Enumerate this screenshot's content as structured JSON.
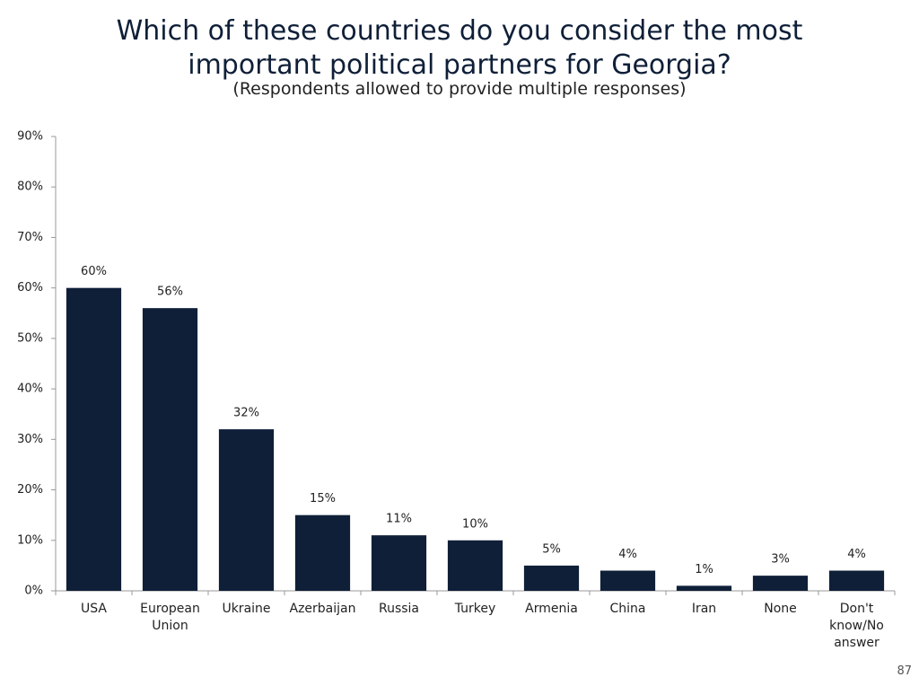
{
  "chart_data": {
    "type": "bar",
    "title": "Which of these countries do you consider the most important political partners for Georgia?",
    "subtitle": "(Respondents allowed to provide multiple responses)",
    "categories": [
      "USA",
      "European Union",
      "Ukraine",
      "Azerbaijan",
      "Russia",
      "Turkey",
      "Armenia",
      "China",
      "Iran",
      "None",
      "Don't know/No answer"
    ],
    "values": [
      60,
      56,
      32,
      15,
      11,
      10,
      5,
      4,
      1,
      3,
      4
    ],
    "value_labels": [
      "60%",
      "56%",
      "32%",
      "15%",
      "11%",
      "10%",
      "5%",
      "4%",
      "1%",
      "3%",
      "4%"
    ],
    "color": "#0f1f38",
    "ylim": [
      0,
      90
    ],
    "yticks": [
      {
        "value": 0,
        "label": "0%"
      },
      {
        "value": 10,
        "label": "10%"
      },
      {
        "value": 20,
        "label": "20%"
      },
      {
        "value": 30,
        "label": "30%"
      },
      {
        "value": 40,
        "label": "40%"
      },
      {
        "value": 50,
        "label": "50%"
      },
      {
        "value": 60,
        "label": "60%"
      },
      {
        "value": 70,
        "label": "70%"
      },
      {
        "value": 80,
        "label": "80%"
      },
      {
        "value": 90,
        "label": "90%"
      }
    ],
    "grid": false
  },
  "page_number": "87"
}
